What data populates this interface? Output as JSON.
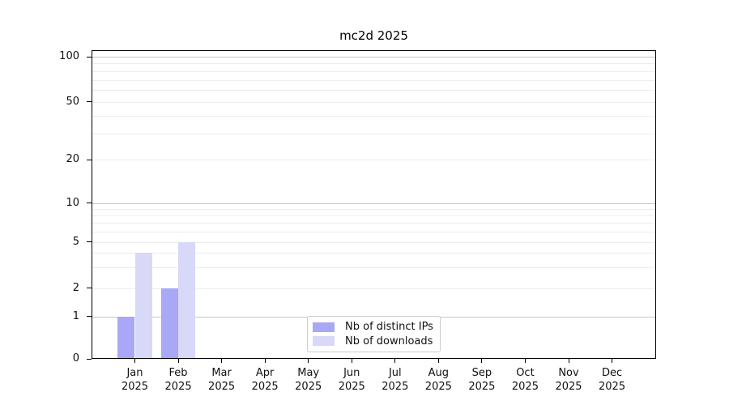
{
  "title": "mc2d 2025",
  "chart_data": {
    "type": "bar",
    "title": "mc2d 2025",
    "categories": [
      "Jan",
      "Feb",
      "Mar",
      "Apr",
      "May",
      "Jun",
      "Jul",
      "Aug",
      "Sep",
      "Oct",
      "Nov",
      "Dec"
    ],
    "category_year": "2025",
    "series": [
      {
        "name": "Nb of distinct IPs",
        "color": "#a8a8f6",
        "values": [
          1,
          2,
          0,
          0,
          0,
          0,
          0,
          0,
          0,
          0,
          0,
          0
        ]
      },
      {
        "name": "Nb of downloads",
        "color": "#d8d8f8",
        "values": [
          4,
          5,
          0,
          0,
          0,
          0,
          0,
          0,
          0,
          0,
          0,
          0
        ]
      }
    ],
    "yticks": [
      0,
      1,
      2,
      5,
      10,
      20,
      50,
      100
    ],
    "ylim": [
      0,
      110
    ],
    "yscale": "symlog",
    "grid": "horizontal, log minors",
    "legend_position": "bottom-center",
    "axis_color": "#000000",
    "grid_minor_color": "#ededed",
    "grid_major_color": "#c6c6c6"
  }
}
